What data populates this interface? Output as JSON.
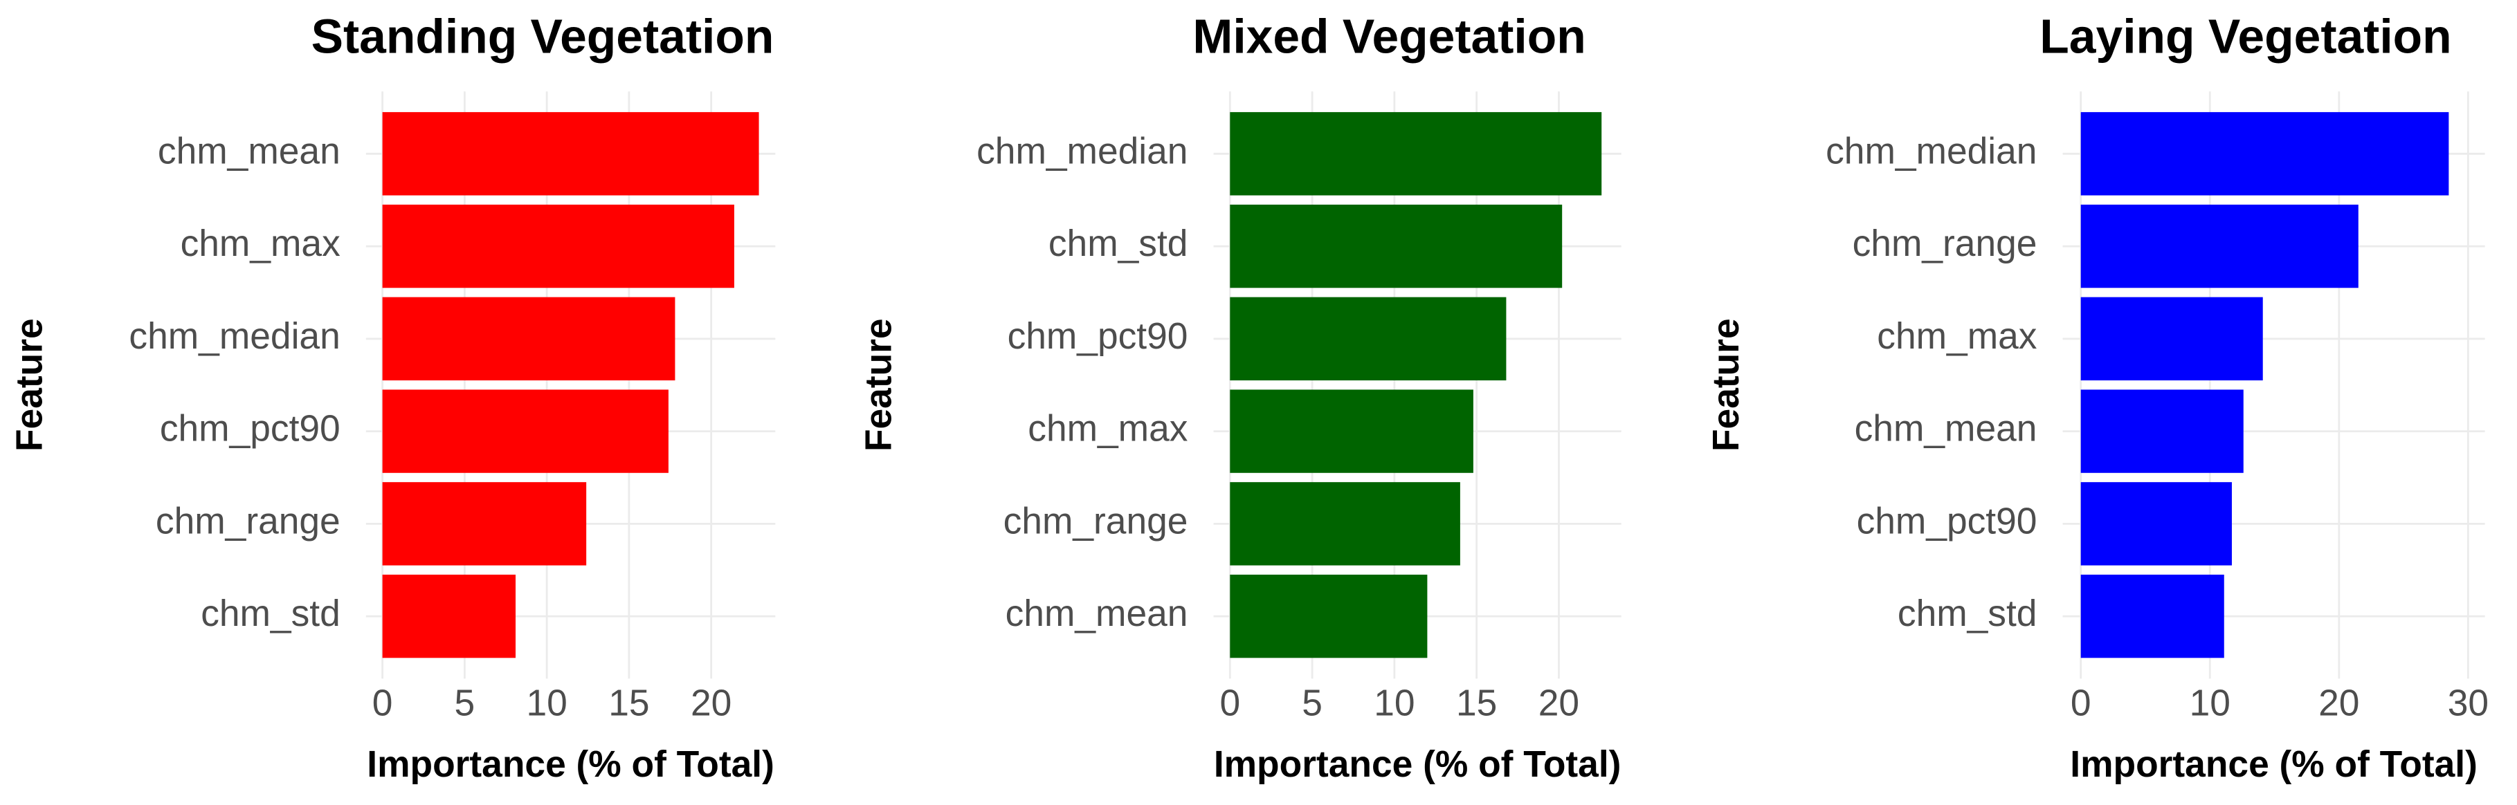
{
  "chart_data": [
    {
      "type": "barh",
      "title": "Standing Vegetation",
      "x_label": "Importance (% of Total)",
      "y_label": "Feature",
      "categories": [
        "chm_mean",
        "chm_max",
        "chm_median",
        "chm_pct90",
        "chm_range",
        "chm_std"
      ],
      "values": [
        22.9,
        21.4,
        17.8,
        17.4,
        12.4,
        8.1
      ],
      "color": "#ff0000",
      "xlim": [
        -1,
        23.9
      ],
      "xticks": [
        0,
        5,
        10,
        15,
        20
      ],
      "grid": true
    },
    {
      "type": "barh",
      "title": "Mixed Vegetation",
      "x_label": "Importance (% of Total)",
      "y_label": "Feature",
      "categories": [
        "chm_median",
        "chm_std",
        "chm_pct90",
        "chm_max",
        "chm_range",
        "chm_mean"
      ],
      "values": [
        22.6,
        20.2,
        16.8,
        14.8,
        14.0,
        12.0
      ],
      "color": "#006400",
      "xlim": [
        -1,
        23.8
      ],
      "xticks": [
        0,
        5,
        10,
        15,
        20
      ],
      "grid": true
    },
    {
      "type": "barh",
      "title": "Laying Vegetation",
      "x_label": "Importance (% of Total)",
      "y_label": "Feature",
      "categories": [
        "chm_median",
        "chm_range",
        "chm_max",
        "chm_mean",
        "chm_pct90",
        "chm_std"
      ],
      "values": [
        28.5,
        21.5,
        14.1,
        12.6,
        11.7,
        11.1
      ],
      "color": "#0000ff",
      "xlim": [
        -1.4,
        31.3
      ],
      "xticks": [
        0,
        10,
        20,
        30
      ],
      "grid": true
    }
  ]
}
